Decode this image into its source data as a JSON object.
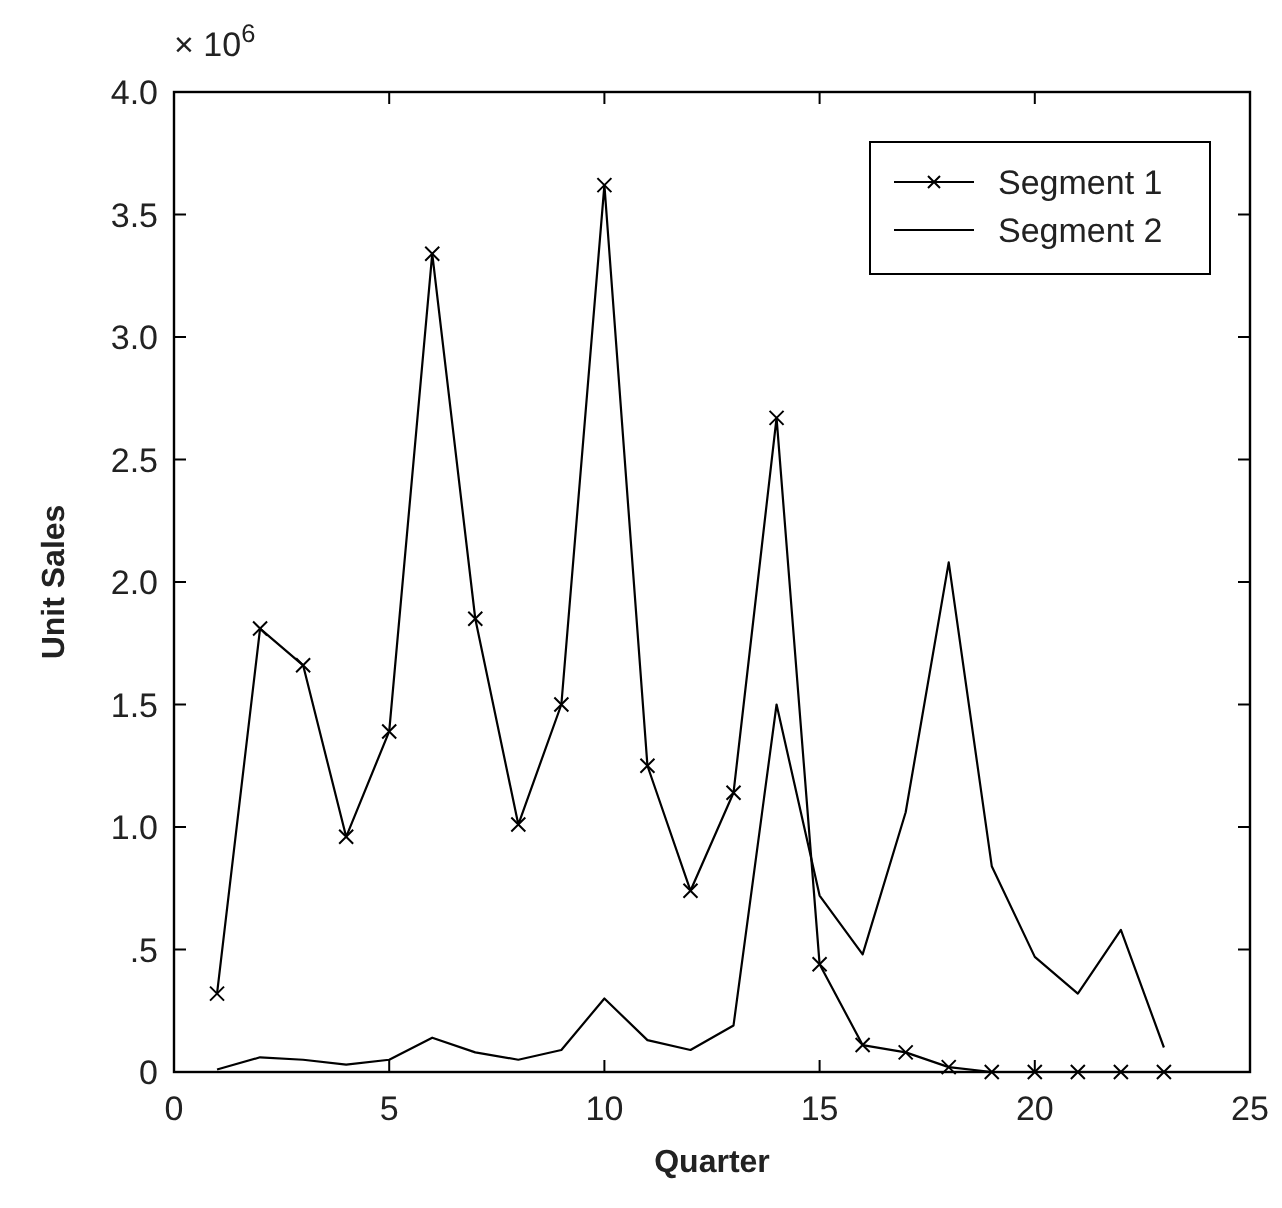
{
  "chart_data": {
    "type": "line",
    "xlabel": "Quarter",
    "ylabel": "Unit Sales",
    "annotations": [
      "× 10$^{6}$"
    ],
    "x": [
      1,
      2,
      3,
      4,
      5,
      6,
      7,
      8,
      9,
      10,
      11,
      12,
      13,
      14,
      15,
      16,
      17,
      18,
      19,
      20,
      21,
      22,
      23
    ],
    "series": [
      {
        "name": "Segment 1",
        "color": "#000000",
        "marker": "cross",
        "values": [
          0.32,
          1.81,
          1.66,
          0.96,
          1.39,
          3.34,
          1.85,
          1.01,
          1.5,
          3.62,
          1.25,
          0.74,
          1.14,
          2.67,
          0.44,
          0.11,
          0.08,
          0.02,
          0,
          0,
          0,
          0,
          0
        ]
      },
      {
        "name": "Segment 2",
        "color": "#000000",
        "marker": "none",
        "values": [
          0.01,
          0.06,
          0.05,
          0.03,
          0.05,
          0.14,
          0.08,
          0.05,
          0.09,
          0.3,
          0.13,
          0.09,
          0.19,
          1.5,
          0.72,
          0.48,
          1.06,
          2.08,
          0.84,
          0.47,
          0.32,
          0.58,
          0.1
        ]
      }
    ],
    "xlim": [
      0,
      25
    ],
    "xticks": [
      0,
      5,
      10,
      15,
      20,
      25
    ],
    "ylim": [
      0,
      4
    ],
    "yticks": [
      0,
      {
        "value": 0.5,
        "label": ".5"
      },
      {
        "value": 1,
        "label": "1.0"
      },
      {
        "value": 1.5,
        "label": "1.5"
      },
      {
        "value": 2,
        "label": "2.0"
      },
      {
        "value": 2.5,
        "label": "2.5"
      },
      {
        "value": 3,
        "label": "3.0"
      },
      {
        "value": 3.5,
        "label": "3.5"
      },
      {
        "value": 4,
        "label": "4.0"
      }
    ],
    "grid": false,
    "legend": "top right",
    "line_style": "solid"
  }
}
